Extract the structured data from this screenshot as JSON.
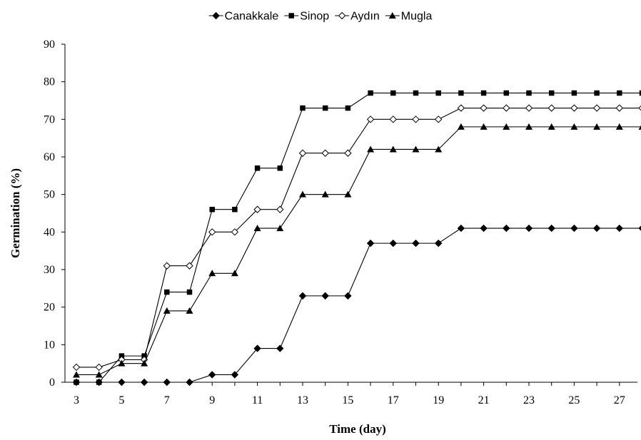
{
  "chart_data": {
    "type": "line",
    "title": "",
    "xlabel": "Time (day)",
    "ylabel": "Germination  (%)",
    "x": [
      3,
      4,
      5,
      6,
      7,
      8,
      9,
      10,
      11,
      12,
      13,
      14,
      15,
      16,
      17,
      18,
      19,
      20,
      21,
      22,
      23,
      24,
      25,
      26,
      27,
      28
    ],
    "xlim": [
      3,
      28
    ],
    "ylim": [
      0,
      90
    ],
    "xticks": [
      3,
      5,
      7,
      9,
      11,
      13,
      15,
      17,
      19,
      21,
      23,
      25,
      27
    ],
    "yticks": [
      0,
      10,
      20,
      30,
      40,
      50,
      60,
      70,
      80,
      90
    ],
    "grid": false,
    "legend_position": "top-center",
    "series": [
      {
        "name": "Canakkale",
        "marker": "filled-diamond",
        "color": "#000000",
        "values": [
          0,
          0,
          0,
          0,
          0,
          0,
          2,
          2,
          9,
          9,
          23,
          23,
          23,
          37,
          37,
          37,
          37,
          41,
          41,
          41,
          41,
          41,
          41,
          41,
          41,
          41
        ]
      },
      {
        "name": "Sinop",
        "marker": "filled-square",
        "color": "#000000",
        "values": [
          0,
          0,
          7,
          7,
          24,
          24,
          46,
          46,
          57,
          57,
          73,
          73,
          73,
          77,
          77,
          77,
          77,
          77,
          77,
          77,
          77,
          77,
          77,
          77,
          77,
          77
        ]
      },
      {
        "name": "Aydın",
        "marker": "open-diamond",
        "color": "#000000",
        "values": [
          4,
          4,
          6,
          6,
          31,
          31,
          40,
          40,
          46,
          46,
          61,
          61,
          61,
          70,
          70,
          70,
          70,
          73,
          73,
          73,
          73,
          73,
          73,
          73,
          73,
          73
        ]
      },
      {
        "name": "Mugla",
        "marker": "filled-triangle",
        "color": "#000000",
        "values": [
          2,
          2,
          5,
          5,
          19,
          19,
          29,
          29,
          41,
          41,
          50,
          50,
          50,
          62,
          62,
          62,
          62,
          68,
          68,
          68,
          68,
          68,
          68,
          68,
          68,
          68
        ]
      }
    ]
  }
}
